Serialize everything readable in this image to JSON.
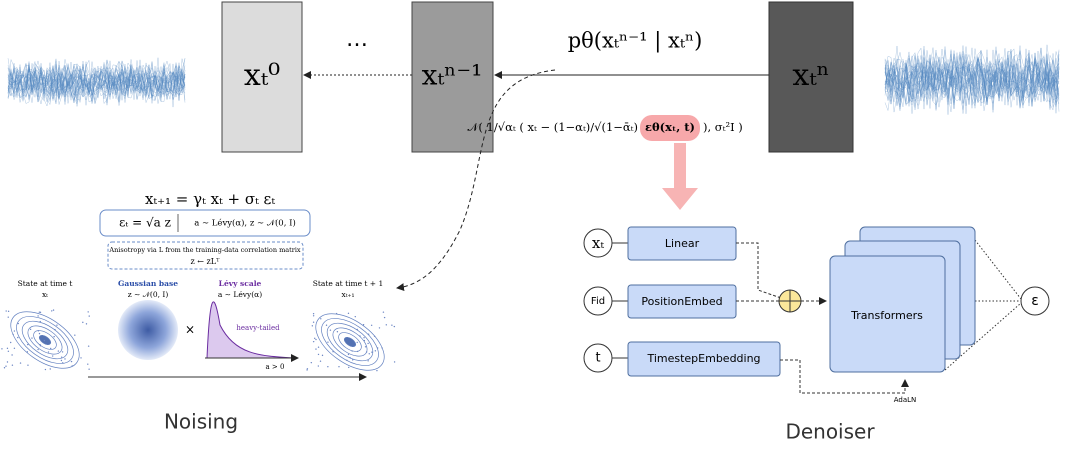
{
  "header": {
    "ellipsis": "…",
    "p_theta": "pθ(xₜⁿ⁻¹ | xₜⁿ)"
  },
  "states": [
    {
      "label": "xₜ⁰"
    },
    {
      "label": "xₜⁿ⁻¹"
    },
    {
      "label": "xₜⁿ"
    }
  ],
  "formula": {
    "prefix": "𝒩( 1/√αₜ ( xₜ − (1−αₜ)/√(1−ᾱₜ)",
    "highlight": "εθ(xₜ, t)",
    "suffix": "), σₜ²I )"
  },
  "noising": {
    "equation": "xₜ₊₁ = γₜ xₜ + σₜ εₜ",
    "noise_def": "εₜ = √a z",
    "noise_dist": "a ∼ Lévy(α),   z ∼ 𝒩(0, I)",
    "anisotropy": "Anisotropy via L from the training-data correlation matrix",
    "anisotropy_eq": "z ← zLᵀ",
    "state_t": "State at time t",
    "state_t_var": "xₜ",
    "gaussian": "Gaussian base",
    "gaussian_eq": "z ∼ 𝒩(0, I)",
    "levy": "Lévy scale",
    "levy_eq": "a ∼ Lévy(α)",
    "heavy": "heavy-tailed",
    "times": "×",
    "state_t1": "State at time t + 1",
    "state_t1_var": "xₜ₊₁",
    "a_pos": "a > 0",
    "caption": "Noising"
  },
  "denoiser": {
    "inputs": [
      "xₜ",
      "Fid",
      "t"
    ],
    "modules": [
      "Linear",
      "PositionEmbed",
      "TimestepEmbedding"
    ],
    "transformers": "Transformers",
    "output": "ε",
    "adaln": "AdaLN",
    "caption": "Denoiser"
  }
}
